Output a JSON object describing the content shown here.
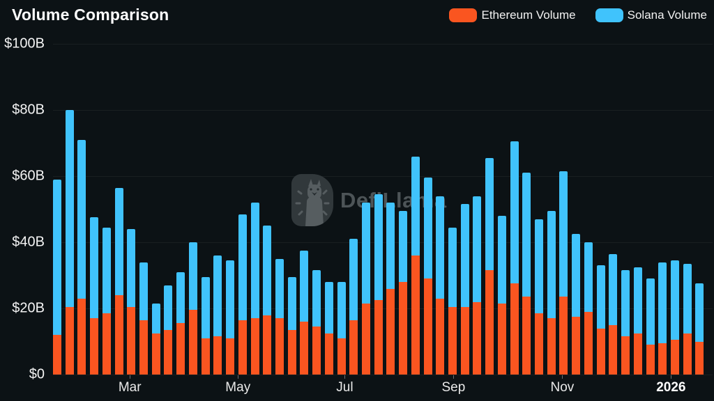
{
  "title": "Volume Comparison",
  "legend": {
    "ethereum": {
      "label": "Ethereum Volume",
      "color": "#fa5520"
    },
    "solana": {
      "label": "Solana Volume",
      "color": "#40c3fc"
    }
  },
  "watermark": {
    "text": "DefiLlama"
  },
  "chart_data": {
    "type": "bar",
    "stacked": true,
    "title": "Volume Comparison",
    "unit": "billions USD",
    "ylim": [
      0,
      100
    ],
    "grid": true,
    "legend_position": "top-right",
    "y_tick_labels": [
      "$100B",
      "$80B",
      "$60B",
      "$40B",
      "$20B",
      "$0"
    ],
    "y_tick_values": [
      100,
      80,
      60,
      40,
      20,
      0
    ],
    "x_tick_labels": [
      "Mar",
      "May",
      "Jul",
      "Sep",
      "Nov",
      "2026"
    ],
    "x_tick_positions_pct": [
      11.8,
      28.4,
      44.8,
      61.5,
      78.2,
      94.9
    ],
    "x_axis_note": "weekly bars, ~Jan 2025 through Jan 2026",
    "series": [
      {
        "name": "Ethereum Volume",
        "color": "#fa5520",
        "values": [
          12,
          20.5,
          23,
          17,
          18.5,
          24,
          20.5,
          16.5,
          12.5,
          13.5,
          15.5,
          19.5,
          11,
          11.5,
          11,
          16.5,
          17,
          18,
          17,
          13.5,
          16,
          14.5,
          12.5,
          11,
          16.5,
          21.5,
          22.5,
          26,
          28,
          36,
          29,
          23,
          20.5,
          20.5,
          22,
          31.5,
          21.5,
          27.5,
          23.5,
          18.5,
          17,
          23.5,
          17.5,
          19,
          14,
          15,
          11.5,
          12.5,
          9,
          9.5,
          10.5,
          12.5,
          10
        ]
      },
      {
        "name": "Solana Volume",
        "color": "#40c3fc",
        "values": [
          47,
          59.5,
          48,
          30.5,
          26,
          32.5,
          23.5,
          17.5,
          9,
          13.5,
          15.5,
          20.5,
          18.5,
          24.5,
          23.5,
          32,
          35,
          27,
          18,
          16,
          21.5,
          17,
          15.5,
          17,
          24.5,
          30.5,
          32,
          26,
          21.5,
          30,
          30.5,
          31,
          24,
          31,
          32,
          34,
          26.5,
          43,
          37.5,
          28.5,
          32.5,
          38,
          25,
          21,
          19,
          21.5,
          20,
          20,
          20,
          24.5,
          24,
          21,
          17.5
        ]
      }
    ]
  }
}
